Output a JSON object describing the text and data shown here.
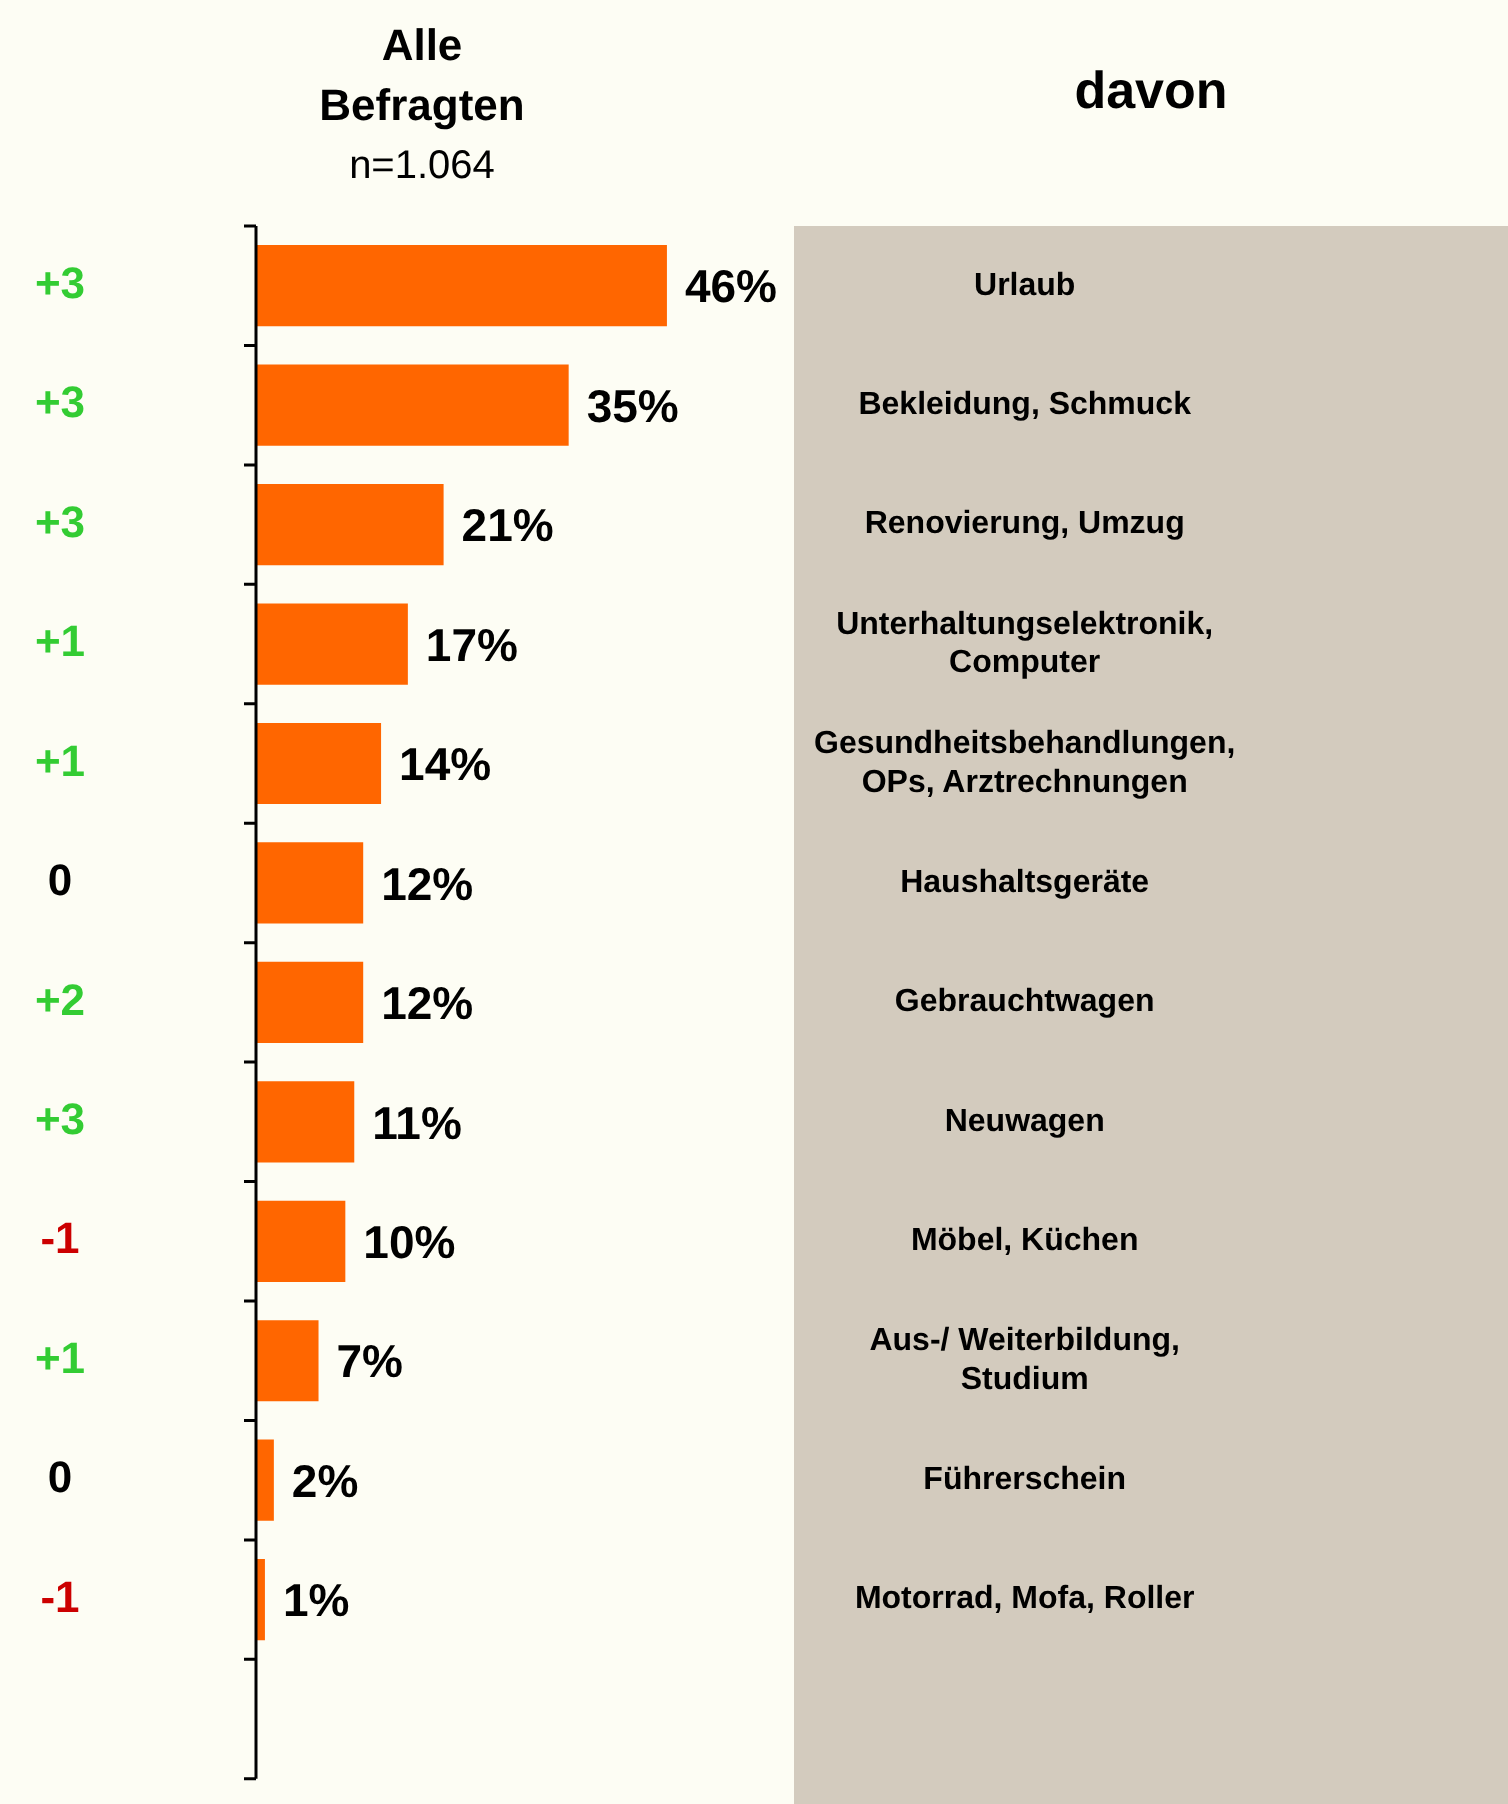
{
  "chart_data": {
    "type": "bar",
    "orientation": "horizontal",
    "title": "Alle Befragten",
    "subtitle": "n=1.064",
    "ylabel": "davon",
    "categories": [
      "Urlaub",
      "Bekleidung, Schmuck",
      "Renovierung, Umzug",
      "Unterhaltungselektronik, Computer",
      "Gesundheitsbehandlungen, OPs, Arztrechnungen",
      "Haushaltsgeräte",
      "Gebrauchtwagen",
      "Neuwagen",
      "Möbel, Küchen",
      "Aus-/ Weiterbildung, Studium",
      "Führerschein",
      "Motorrad, Mofa, Roller",
      null
    ],
    "values": [
      46,
      35,
      21,
      17,
      14,
      12,
      12,
      11,
      10,
      7,
      2,
      1,
      null
    ],
    "value_labels": [
      "46%",
      "35%",
      "21%",
      "17%",
      "14%",
      "12%",
      "12%",
      "11%",
      "10%",
      "7%",
      "2%",
      "1%",
      null
    ],
    "color": "#ff6600",
    "legend": false,
    "annotations": [
      "+3",
      "+3",
      "+3",
      "+1",
      "+1",
      "0",
      "+2",
      "+3",
      "-1",
      "+1",
      "0",
      "-1"
    ]
  }
}
